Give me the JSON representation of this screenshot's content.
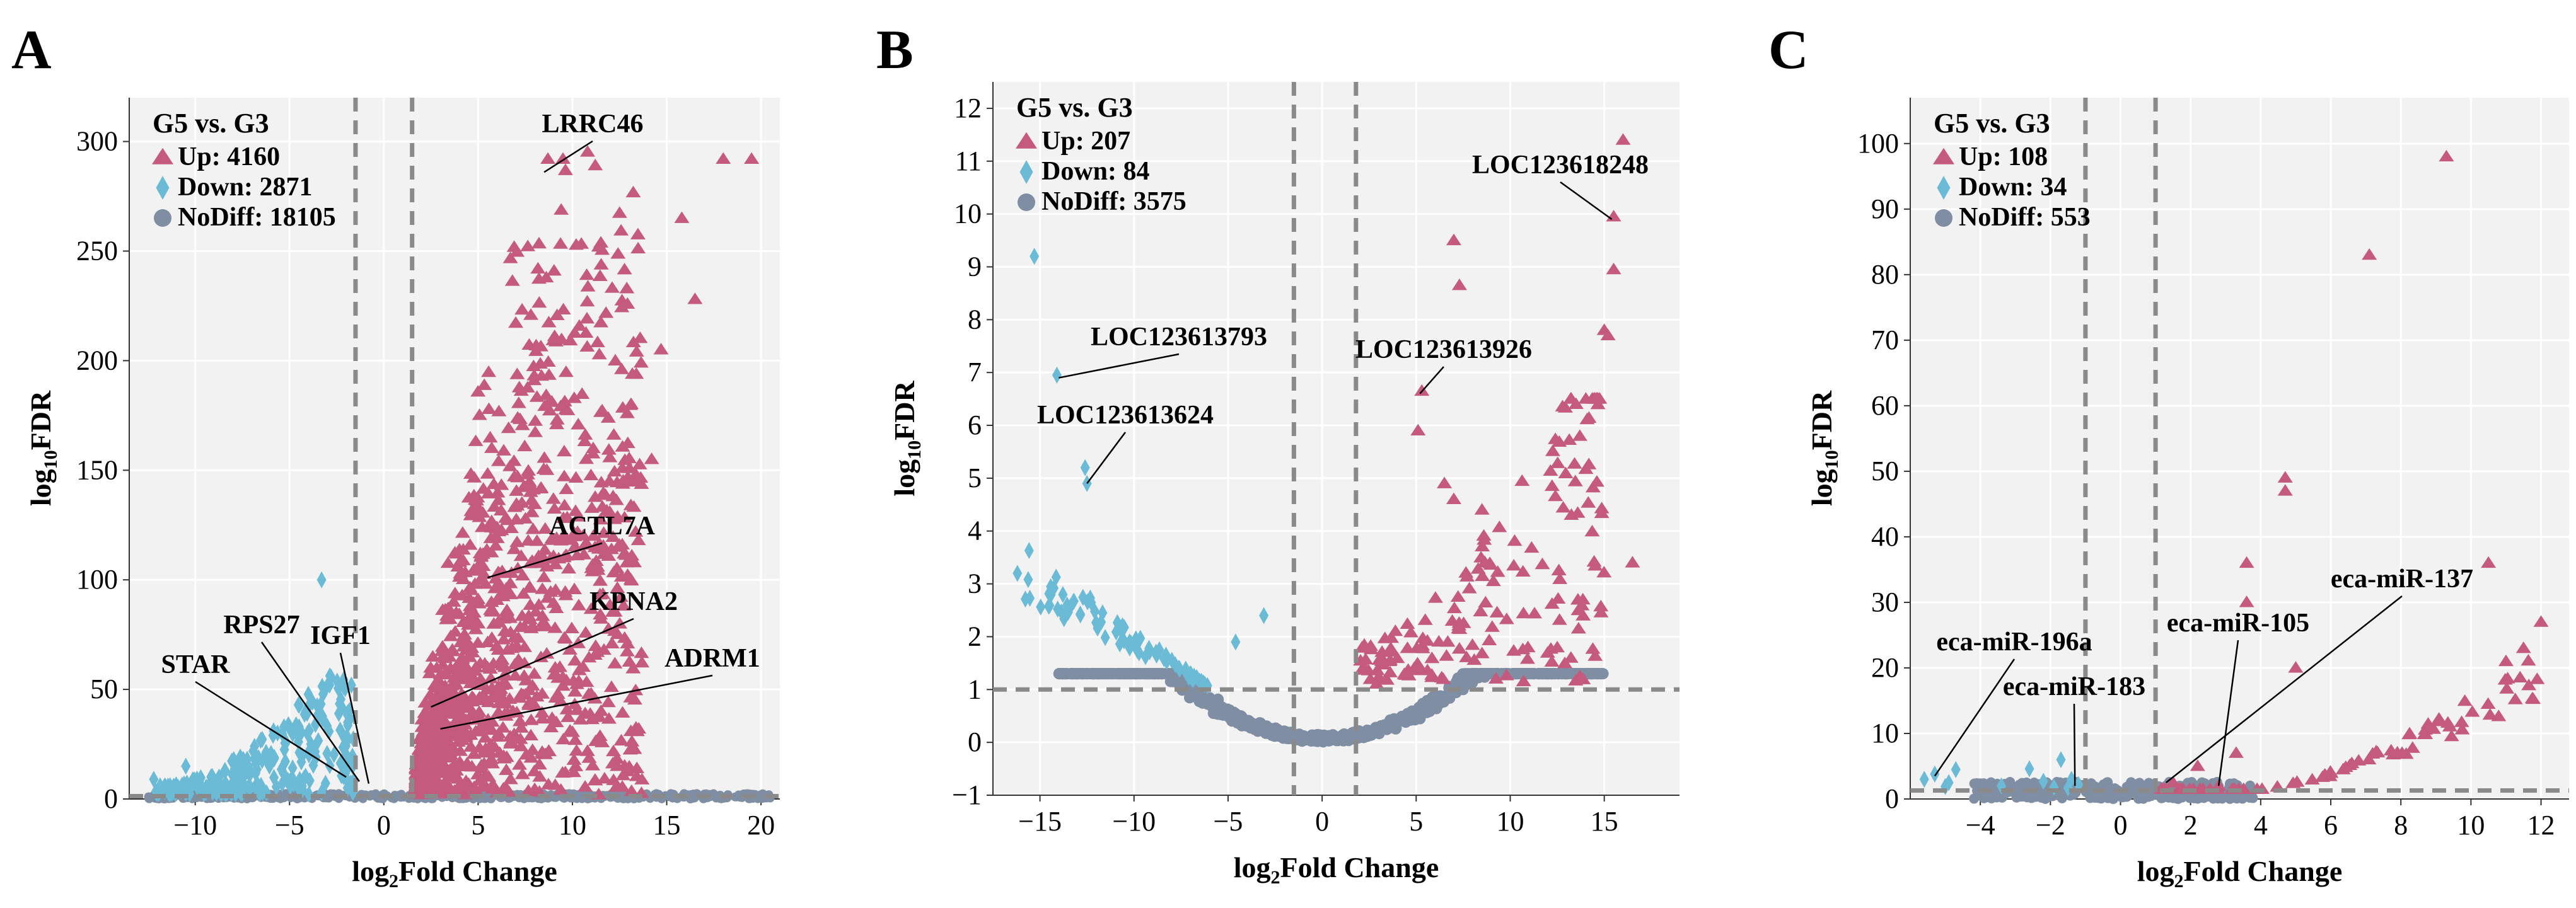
{
  "chart_data": [
    {
      "panel": "A",
      "type": "scatter",
      "title": "G5 vs. G3",
      "xlabel": "log2Fold Change",
      "ylabel": "log10FDR",
      "xlim": [
        -13.5,
        21
      ],
      "ylim": [
        0,
        320
      ],
      "xticks": [
        -10,
        -5,
        0,
        5,
        10,
        15,
        20
      ],
      "yticks": [
        0,
        50,
        100,
        150,
        200,
        250,
        300
      ],
      "vlines": [
        -1.5,
        1.5
      ],
      "hline": 1.3,
      "legend": [
        {
          "label": "Up: 4160",
          "color": "#c45a7d",
          "shape": "triangle"
        },
        {
          "label": "Down: 2871",
          "color": "#6bbad6",
          "shape": "diamond"
        },
        {
          "label": "NoDiff: 18105",
          "color": "#7f8ea3",
          "shape": "circle"
        }
      ],
      "annotations": [
        {
          "text": "LRRC46",
          "x": 8.5,
          "y": 286
        },
        {
          "text": "ACTL7A",
          "x": 5.5,
          "y": 101
        },
        {
          "text": "KPNA2",
          "x": 2.5,
          "y": 42
        },
        {
          "text": "ADRM1",
          "x": 3,
          "y": 32
        },
        {
          "text": "RPS27",
          "x": -1.3,
          "y": 8
        },
        {
          "text": "IGF1",
          "x": -0.8,
          "y": 7
        },
        {
          "text": "STAR",
          "x": -2,
          "y": 10
        }
      ]
    },
    {
      "panel": "B",
      "type": "scatter",
      "title": "G5 vs. G3",
      "xlabel": "log2Fold Change",
      "ylabel": "log10FDR",
      "xlim": [
        -17.5,
        19
      ],
      "ylim": [
        -1,
        12.5
      ],
      "xticks": [
        -15,
        -10,
        -5,
        0,
        5,
        10,
        15
      ],
      "yticks": [
        -1,
        0,
        1,
        2,
        3,
        4,
        5,
        6,
        7,
        8,
        9,
        10,
        11,
        12
      ],
      "vlines": [
        -1.5,
        1.8
      ],
      "hline": 1,
      "legend": [
        {
          "label": "Up: 207",
          "color": "#c45a7d",
          "shape": "triangle"
        },
        {
          "label": "Down: 84",
          "color": "#6bbad6",
          "shape": "diamond"
        },
        {
          "label": "NoDiff: 3575",
          "color": "#7f8ea3",
          "shape": "circle"
        }
      ],
      "annotations": [
        {
          "text": "LOC123618248",
          "x": 15.4,
          "y": 9.9
        },
        {
          "text": "LOC123613793",
          "x": -14,
          "y": 6.9
        },
        {
          "text": "LOC123613926",
          "x": 5.2,
          "y": 6.6
        },
        {
          "text": "LOC123613624",
          "x": -12.5,
          "y": 4.9
        }
      ]
    },
    {
      "panel": "C",
      "type": "scatter",
      "title": "G5 vs. G3",
      "xlabel": "log2Fold Change",
      "ylabel": "log10FDR",
      "xlim": [
        -6,
        12.8
      ],
      "ylim": [
        0,
        107
      ],
      "xticks": [
        -4,
        -2,
        0,
        2,
        4,
        6,
        8,
        10,
        12
      ],
      "yticks": [
        0,
        10,
        20,
        30,
        40,
        50,
        60,
        70,
        80,
        90,
        100
      ],
      "vlines": [
        -1,
        1
      ],
      "hline": 1.3,
      "legend": [
        {
          "label": "Up: 108",
          "color": "#c45a7d",
          "shape": "triangle"
        },
        {
          "label": "Down: 34",
          "color": "#6bbad6",
          "shape": "diamond"
        },
        {
          "label": "NoDiff: 553",
          "color": "#7f8ea3",
          "shape": "circle"
        }
      ],
      "annotations": [
        {
          "text": "eca-miR-137",
          "x": 1.3,
          "y": 2.5
        },
        {
          "text": "eca-miR-105",
          "x": 2.8,
          "y": 2
        },
        {
          "text": "eca-miR-196a",
          "x": -5.3,
          "y": 3.5
        },
        {
          "text": "eca-miR-183",
          "x": -1.3,
          "y": 2
        }
      ]
    }
  ]
}
